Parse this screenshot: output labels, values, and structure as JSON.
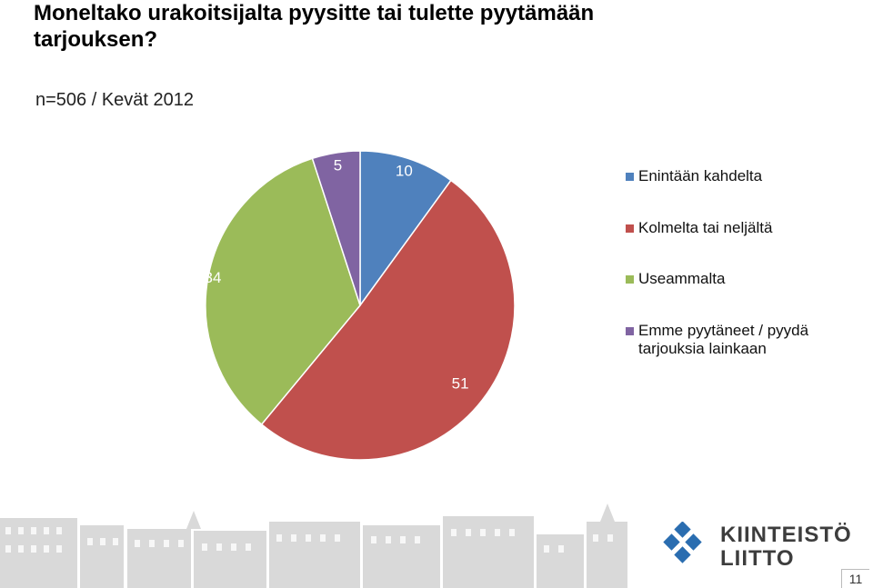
{
  "title": "Moneltako urakoitsijalta pyysitte tai tulette pyytämään tarjouksen?",
  "subtitle": "n=506 / Kevät 2012",
  "chart_data": {
    "type": "pie",
    "slices": [
      {
        "label": "Enintään kahdelta",
        "value": 10,
        "color": "#4f81bd"
      },
      {
        "label": "Kolmelta tai neljältä",
        "value": 51,
        "color": "#c0504d"
      },
      {
        "label": "Useammalta",
        "value": 34,
        "color": "#9bbb59"
      },
      {
        "label": "Emme pyytäneet / pyydä tarjouksia lainkaan",
        "value": 5,
        "color": "#8064a2"
      }
    ],
    "legend_position": "right"
  },
  "logo": {
    "line1": "KIINTEISTÖ",
    "line2": "LIITTO"
  },
  "page_number": "11"
}
